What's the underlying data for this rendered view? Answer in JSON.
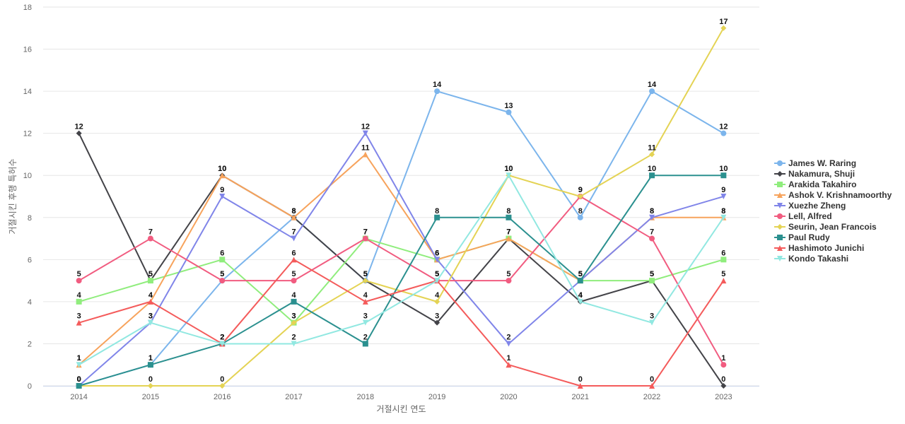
{
  "chart_data": {
    "type": "line",
    "xlabel": "거절시킨 연도",
    "ylabel": "거절시킨 후행 특허수",
    "ylim": [
      0,
      18
    ],
    "yticks": [
      0,
      2,
      4,
      6,
      8,
      10,
      12,
      14,
      16,
      18
    ],
    "categories": [
      "2014",
      "2015",
      "2016",
      "2017",
      "2018",
      "2019",
      "2020",
      "2021",
      "2022",
      "2023"
    ],
    "grid": true,
    "legend_position": "right",
    "series": [
      {
        "name": "James W. Raring",
        "color": "#7cb5ec",
        "marker": "circle",
        "values": [
          0,
          1,
          5,
          8,
          5,
          14,
          13,
          8,
          14,
          12
        ]
      },
      {
        "name": "Nakamura, Shuji",
        "color": "#434348",
        "marker": "diamond",
        "values": [
          12,
          5,
          10,
          8,
          5,
          3,
          7,
          4,
          5,
          0
        ]
      },
      {
        "name": "Arakida Takahiro",
        "color": "#90ed7d",
        "marker": "square",
        "values": [
          4,
          5,
          6,
          3,
          7,
          6,
          7,
          5,
          5,
          6
        ]
      },
      {
        "name": "Ashok V. Krishnamoorthy",
        "color": "#f7a35c",
        "marker": "triangle",
        "values": [
          1,
          4,
          10,
          8,
          11,
          6,
          7,
          5,
          8,
          8
        ]
      },
      {
        "name": "Xuezhe Zheng",
        "color": "#8085e9",
        "marker": "triangle-down",
        "values": [
          0,
          3,
          9,
          7,
          12,
          6,
          2,
          5,
          8,
          9
        ]
      },
      {
        "name": "Lell, Alfred",
        "color": "#f15c80",
        "marker": "circle",
        "values": [
          5,
          7,
          5,
          5,
          7,
          5,
          5,
          9,
          7,
          1
        ]
      },
      {
        "name": "Seurin, Jean Francois",
        "color": "#e4d354",
        "marker": "diamond",
        "values": [
          0,
          0,
          0,
          3,
          5,
          4,
          10,
          9,
          11,
          17
        ]
      },
      {
        "name": "Paul Rudy",
        "color": "#2b908f",
        "marker": "square",
        "values": [
          0,
          1,
          2,
          4,
          2,
          8,
          8,
          5,
          10,
          10
        ]
      },
      {
        "name": "Hashimoto Junichi",
        "color": "#f45b5b",
        "marker": "triangle",
        "values": [
          3,
          4,
          2,
          6,
          4,
          5,
          1,
          0,
          0,
          5
        ]
      },
      {
        "name": "Kondo Takashi",
        "color": "#91e8e1",
        "marker": "triangle-down",
        "values": [
          1,
          3,
          2,
          2,
          3,
          5,
          10,
          4,
          3,
          8
        ]
      }
    ]
  }
}
